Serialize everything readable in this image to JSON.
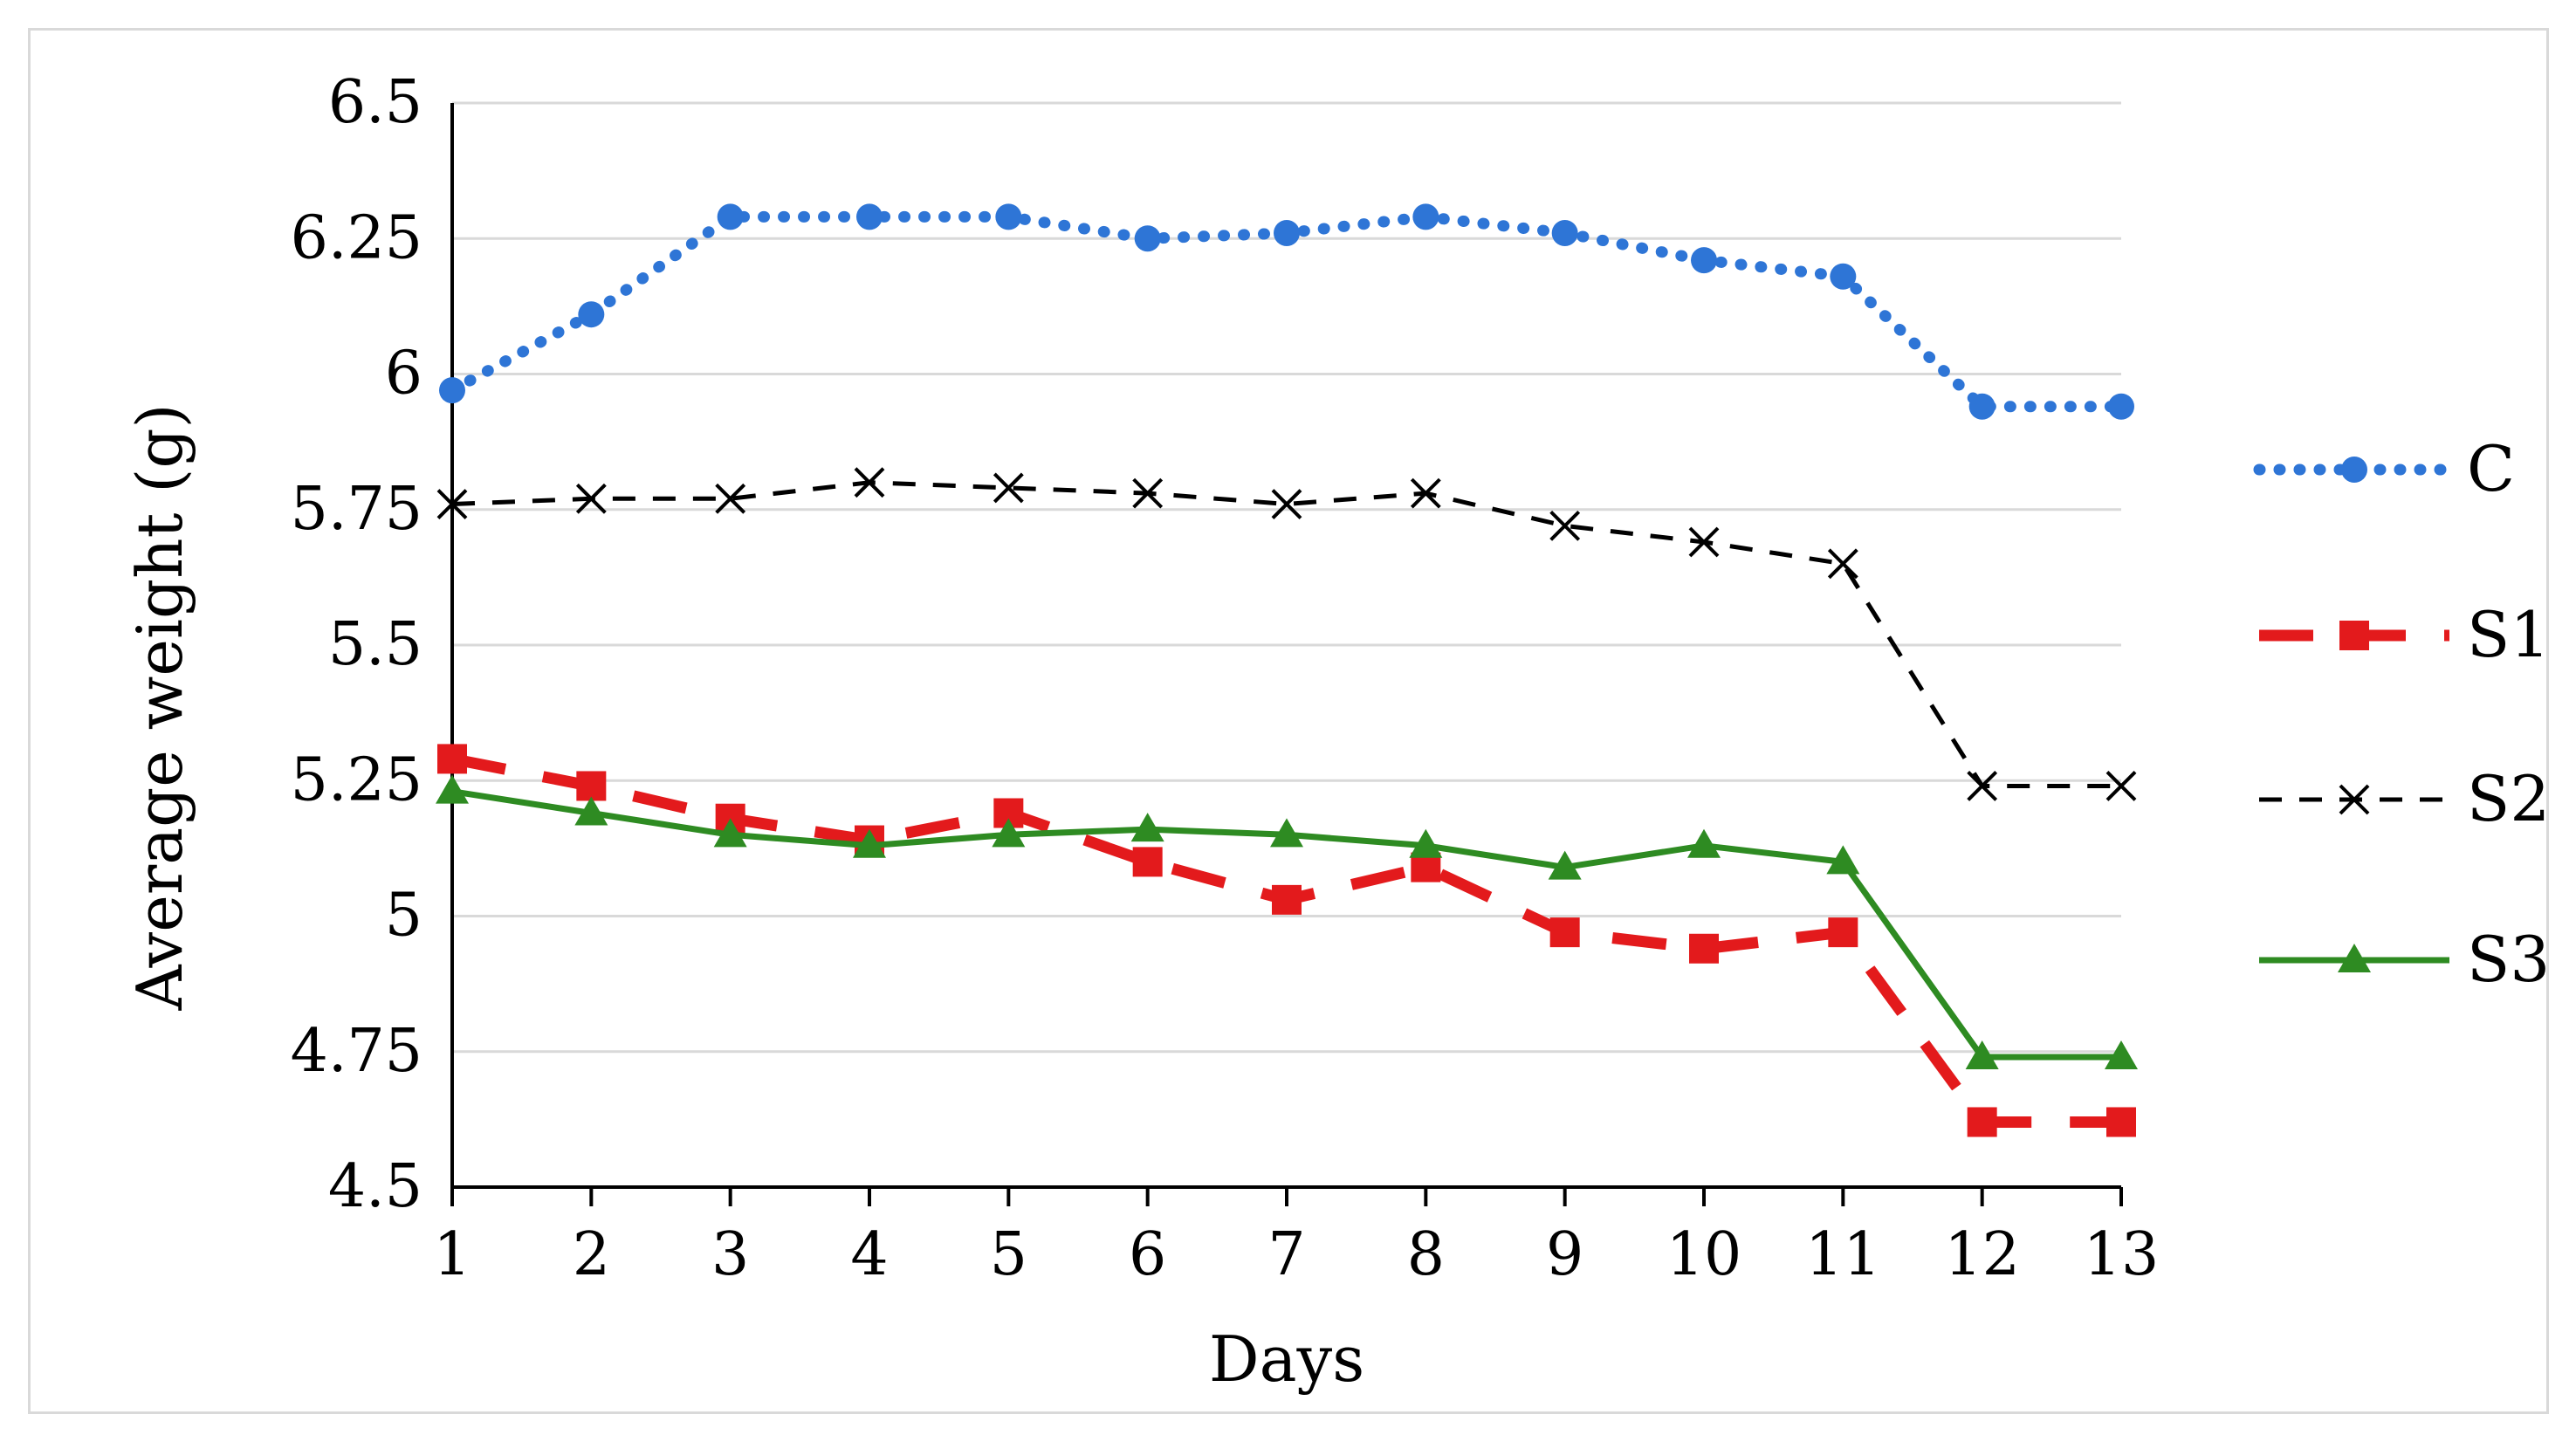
{
  "chart_data": {
    "type": "line",
    "title": "",
    "xlabel": "Days",
    "ylabel": "Average weight (g)",
    "x": [
      1,
      2,
      3,
      4,
      5,
      6,
      7,
      8,
      9,
      10,
      11,
      12,
      13
    ],
    "x_tick_labels": [
      "1",
      "2",
      "3",
      "4",
      "5",
      "6",
      "7",
      "8",
      "9",
      "10",
      "11",
      "12",
      "13"
    ],
    "ylim": [
      4.5,
      6.5
    ],
    "y_ticks": [
      4.5,
      4.75,
      5,
      5.25,
      5.5,
      5.75,
      6,
      6.25,
      6.5
    ],
    "y_tick_labels": [
      "4.5",
      "4.75",
      "5",
      "5.25",
      "5.5",
      "5.75",
      "6",
      "6.25",
      "6.5"
    ],
    "grid": "horizontal",
    "legend_position": "right",
    "series": [
      {
        "name": "C",
        "color": "#2E75D6",
        "line_style": "dotted",
        "marker": "circle",
        "values": [
          5.97,
          6.11,
          6.29,
          6.29,
          6.29,
          6.25,
          6.26,
          6.29,
          6.26,
          6.21,
          6.18,
          5.94,
          5.94
        ]
      },
      {
        "name": "S1",
        "color": "#E31A1C",
        "line_style": "dashed",
        "marker": "square",
        "values": [
          5.29,
          5.24,
          5.18,
          5.14,
          5.19,
          5.1,
          5.03,
          5.09,
          4.97,
          4.94,
          4.97,
          4.62,
          4.62
        ]
      },
      {
        "name": "S2",
        "color": "#000000",
        "line_style": "dashed-thin",
        "marker": "x",
        "values": [
          5.76,
          5.77,
          5.77,
          5.8,
          5.79,
          5.78,
          5.76,
          5.78,
          5.72,
          5.69,
          5.65,
          5.24,
          5.24
        ]
      },
      {
        "name": "S3",
        "color": "#2E8B22",
        "line_style": "solid",
        "marker": "triangle",
        "values": [
          5.23,
          5.19,
          5.15,
          5.13,
          5.15,
          5.16,
          5.15,
          5.13,
          5.09,
          5.13,
          5.1,
          4.74,
          4.74
        ]
      }
    ]
  }
}
